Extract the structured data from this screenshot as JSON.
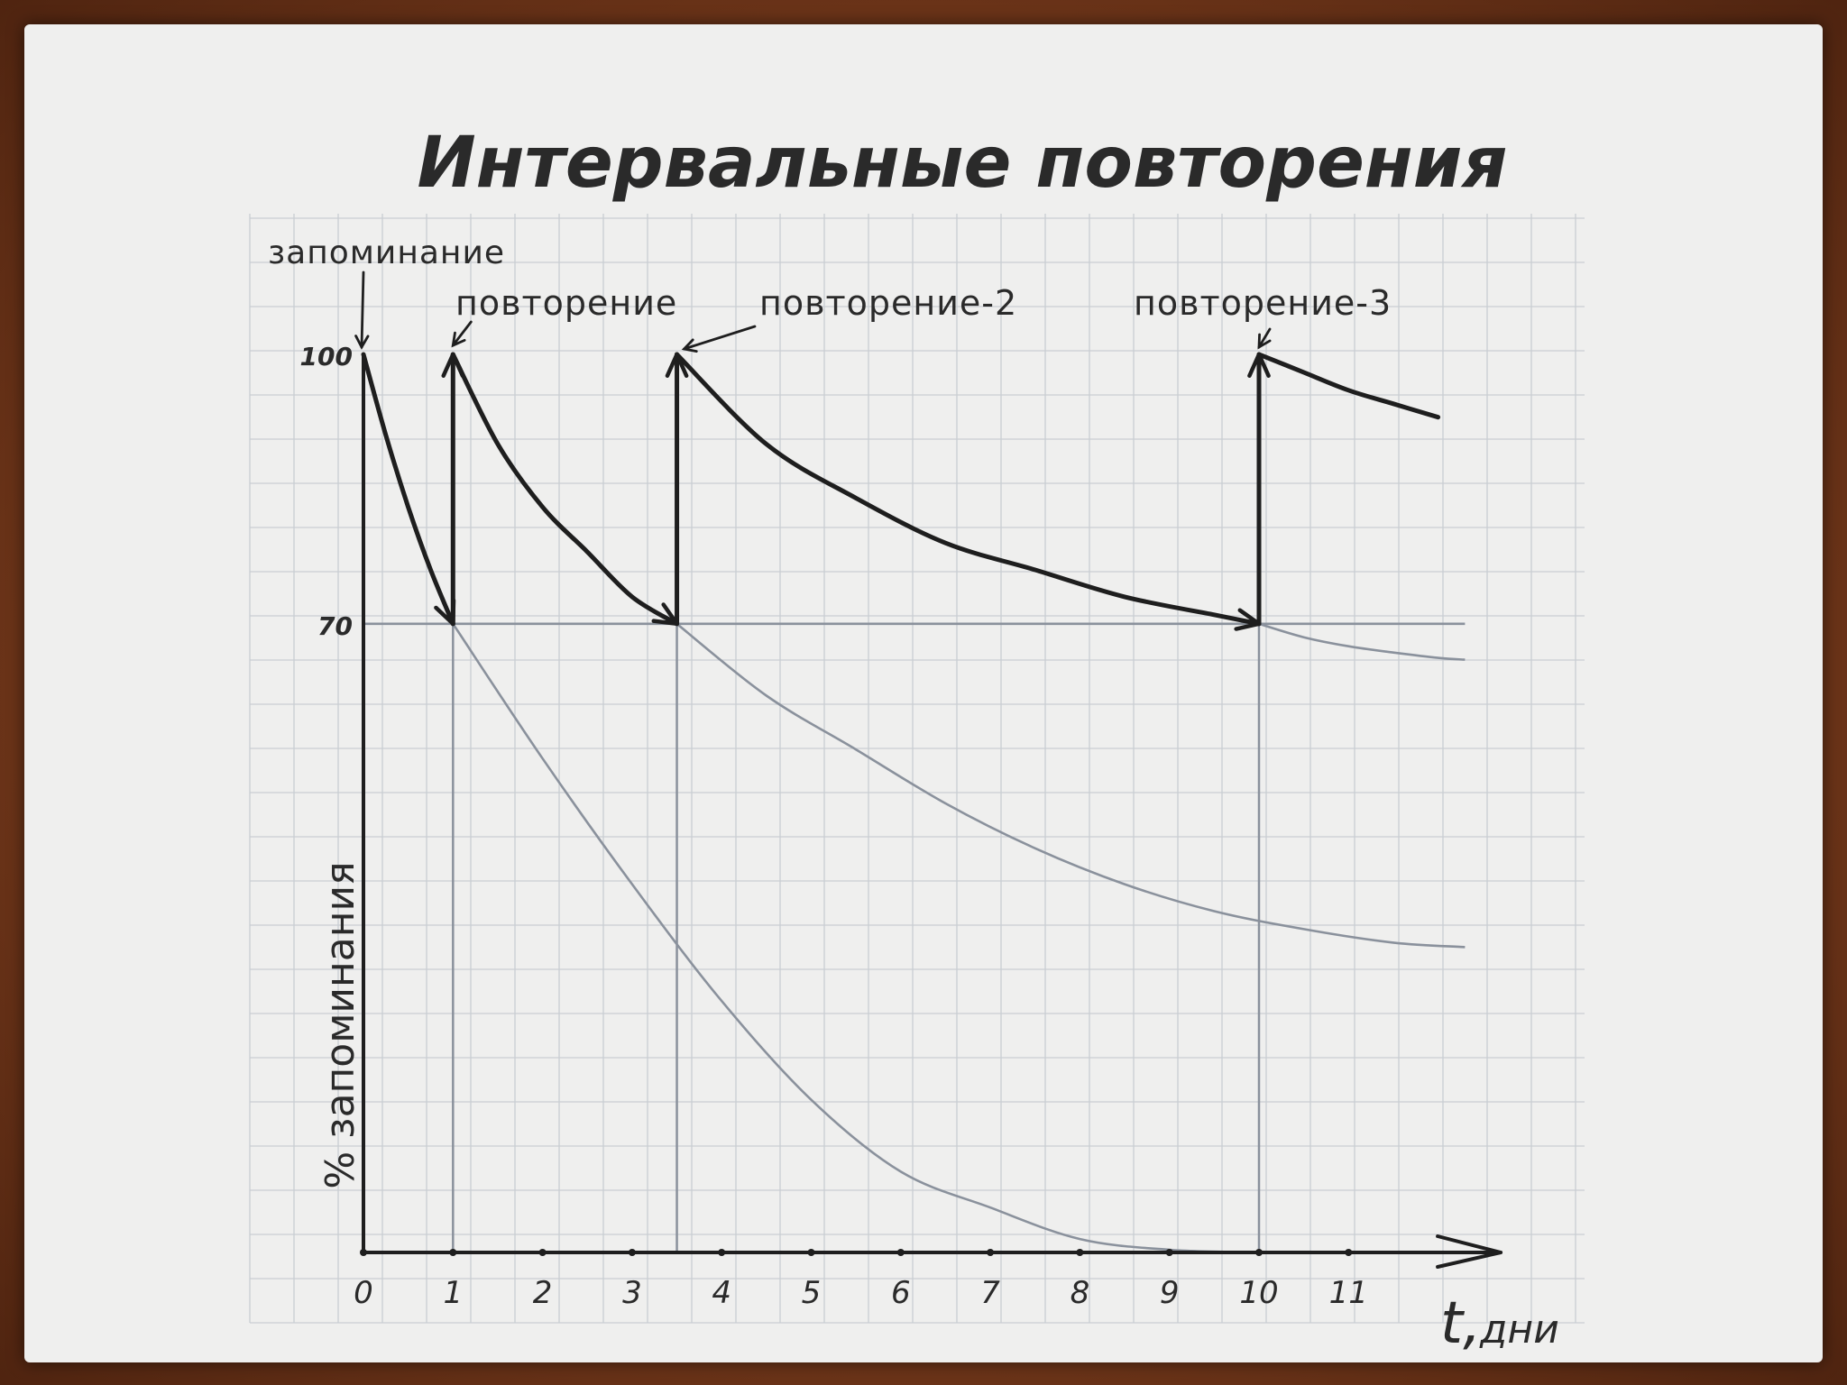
{
  "chart_data": {
    "type": "line",
    "title": "Интервальные повторения",
    "xlabel_main": "t,",
    "xlabel_unit": "дни",
    "ylabel": "% запоминания",
    "x_ticks": [
      "0",
      "1",
      "2",
      "3",
      "4",
      "5",
      "6",
      "7",
      "8",
      "9",
      "10",
      "11"
    ],
    "y_ticks": [
      "100",
      "70"
    ],
    "xlim": [
      0,
      12.7
    ],
    "ylim": [
      0,
      100
    ],
    "grid": true,
    "annotations": [
      {
        "text": "запоминание",
        "x": 0,
        "y": 100
      },
      {
        "text": "повторение",
        "x": 1,
        "y": 100
      },
      {
        "text": "повторение-2",
        "x": 3.5,
        "y": 100
      },
      {
        "text": "повторение-3",
        "x": 10,
        "y": 100
      }
    ],
    "series": [
      {
        "style": "bold",
        "x": [
          0,
          0.25,
          0.5,
          0.75,
          1,
          1,
          1.5,
          2,
          2.5,
          3,
          3.5,
          3.5,
          4.5,
          5.5,
          6.5,
          7.5,
          8.5,
          9.5,
          10,
          10,
          10.5,
          11,
          11.5,
          12
        ],
        "y": [
          100,
          91,
          83,
          76,
          70,
          100,
          90,
          83,
          78,
          73,
          70,
          100,
          90,
          84,
          79,
          76,
          73,
          71,
          70,
          100,
          98,
          96,
          94.5,
          93
        ]
      },
      {
        "style": "faint",
        "x": [
          1,
          2,
          3,
          4,
          5,
          6,
          7,
          8,
          9,
          10
        ],
        "y": [
          70,
          55,
          41,
          28,
          17,
          9,
          5,
          1.5,
          0.3,
          0
        ]
      },
      {
        "style": "faint",
        "x": [
          3.5,
          4.5,
          5.5,
          6.5,
          7.5,
          8.5,
          9.5,
          10.5,
          11.5,
          12.3
        ],
        "y": [
          70,
          62,
          56,
          50,
          45,
          41,
          38,
          36,
          34.5,
          34
        ]
      },
      {
        "style": "faint",
        "x": [
          10,
          10.5,
          11,
          11.5,
          12,
          12.3
        ],
        "y": [
          70,
          68.5,
          67.5,
          66.8,
          66.2,
          66
        ]
      },
      {
        "style": "faint",
        "x": [
          0,
          12.3
        ],
        "y": [
          70,
          70
        ]
      }
    ],
    "guide_x": [
      1,
      3.5,
      10
    ]
  },
  "colors": {
    "ink": "#1e1e1e",
    "pencil": "#8a919c",
    "grid": "#c9cdd3",
    "paper": "#efefee"
  }
}
